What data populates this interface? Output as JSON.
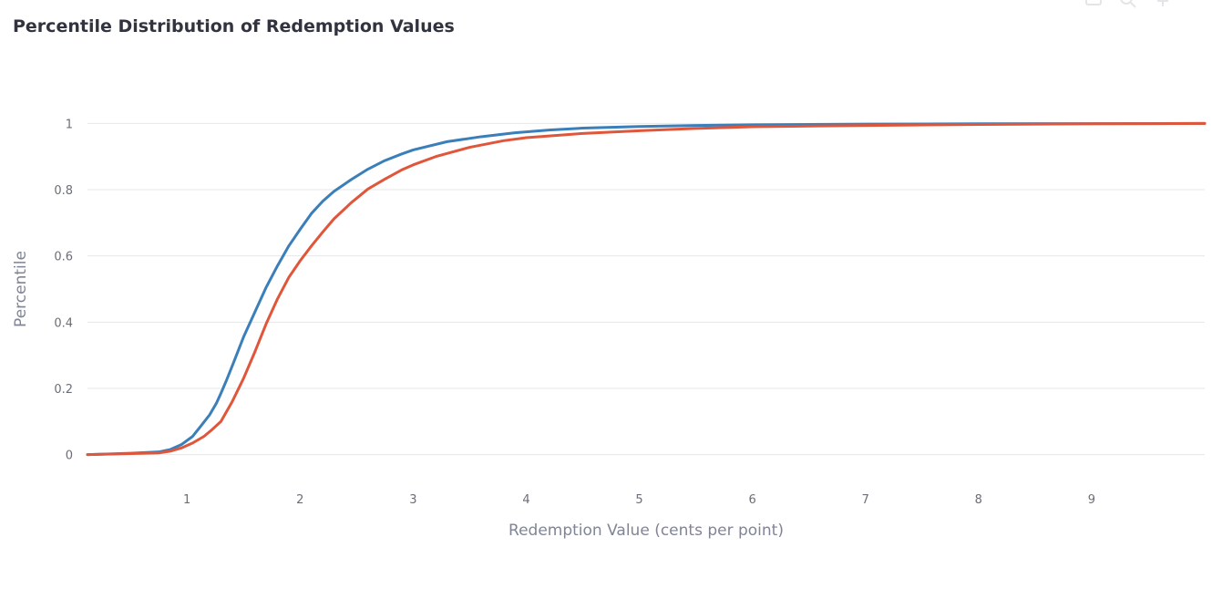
{
  "chart_data": {
    "type": "line",
    "title": "Percentile Distribution of Redemption Values",
    "xlabel": "Redemption Value (cents per point)",
    "ylabel": "Percentile",
    "xlim": [
      0.12,
      10.0
    ],
    "ylim": [
      -0.07,
      1.07
    ],
    "x_ticks": [
      1,
      2,
      3,
      4,
      5,
      6,
      7,
      8,
      9
    ],
    "y_ticks": [
      0,
      0.2,
      0.4,
      0.6,
      0.8,
      1
    ],
    "grid": true,
    "legend": "none",
    "series": [
      {
        "color": "#3a7fba",
        "x": [
          0.12,
          0.5,
          0.75,
          0.85,
          0.95,
          1.05,
          1.12,
          1.2,
          1.26,
          1.3,
          1.35,
          1.42,
          1.5,
          1.6,
          1.7,
          1.8,
          1.9,
          2.0,
          2.1,
          2.2,
          2.3,
          2.45,
          2.6,
          2.75,
          2.9,
          3.0,
          3.3,
          3.6,
          3.9,
          4.2,
          4.5,
          5.0,
          5.5,
          6.0,
          7.0,
          8.0,
          9.0,
          10.0
        ],
        "y": [
          0.0,
          0.004,
          0.008,
          0.015,
          0.03,
          0.055,
          0.085,
          0.12,
          0.155,
          0.185,
          0.225,
          0.285,
          0.355,
          0.43,
          0.505,
          0.57,
          0.63,
          0.68,
          0.728,
          0.765,
          0.795,
          0.83,
          0.862,
          0.888,
          0.908,
          0.92,
          0.945,
          0.96,
          0.972,
          0.98,
          0.986,
          0.991,
          0.994,
          0.996,
          0.998,
          0.999,
          0.9995,
          1.0
        ]
      },
      {
        "color": "#e0563b",
        "x": [
          0.12,
          0.5,
          0.75,
          0.85,
          0.95,
          1.05,
          1.15,
          1.22,
          1.3,
          1.4,
          1.5,
          1.6,
          1.7,
          1.8,
          1.9,
          2.0,
          2.1,
          2.2,
          2.3,
          2.45,
          2.6,
          2.75,
          2.9,
          3.0,
          3.2,
          3.5,
          3.8,
          4.0,
          4.5,
          5.0,
          5.5,
          6.0,
          7.0,
          8.0,
          9.0,
          10.0
        ],
        "y": [
          0.0,
          0.003,
          0.005,
          0.01,
          0.02,
          0.035,
          0.055,
          0.075,
          0.1,
          0.16,
          0.23,
          0.31,
          0.395,
          0.47,
          0.535,
          0.585,
          0.63,
          0.672,
          0.712,
          0.76,
          0.802,
          0.832,
          0.86,
          0.875,
          0.9,
          0.928,
          0.948,
          0.957,
          0.97,
          0.978,
          0.985,
          0.99,
          0.994,
          0.997,
          0.999,
          1.0
        ]
      }
    ]
  }
}
